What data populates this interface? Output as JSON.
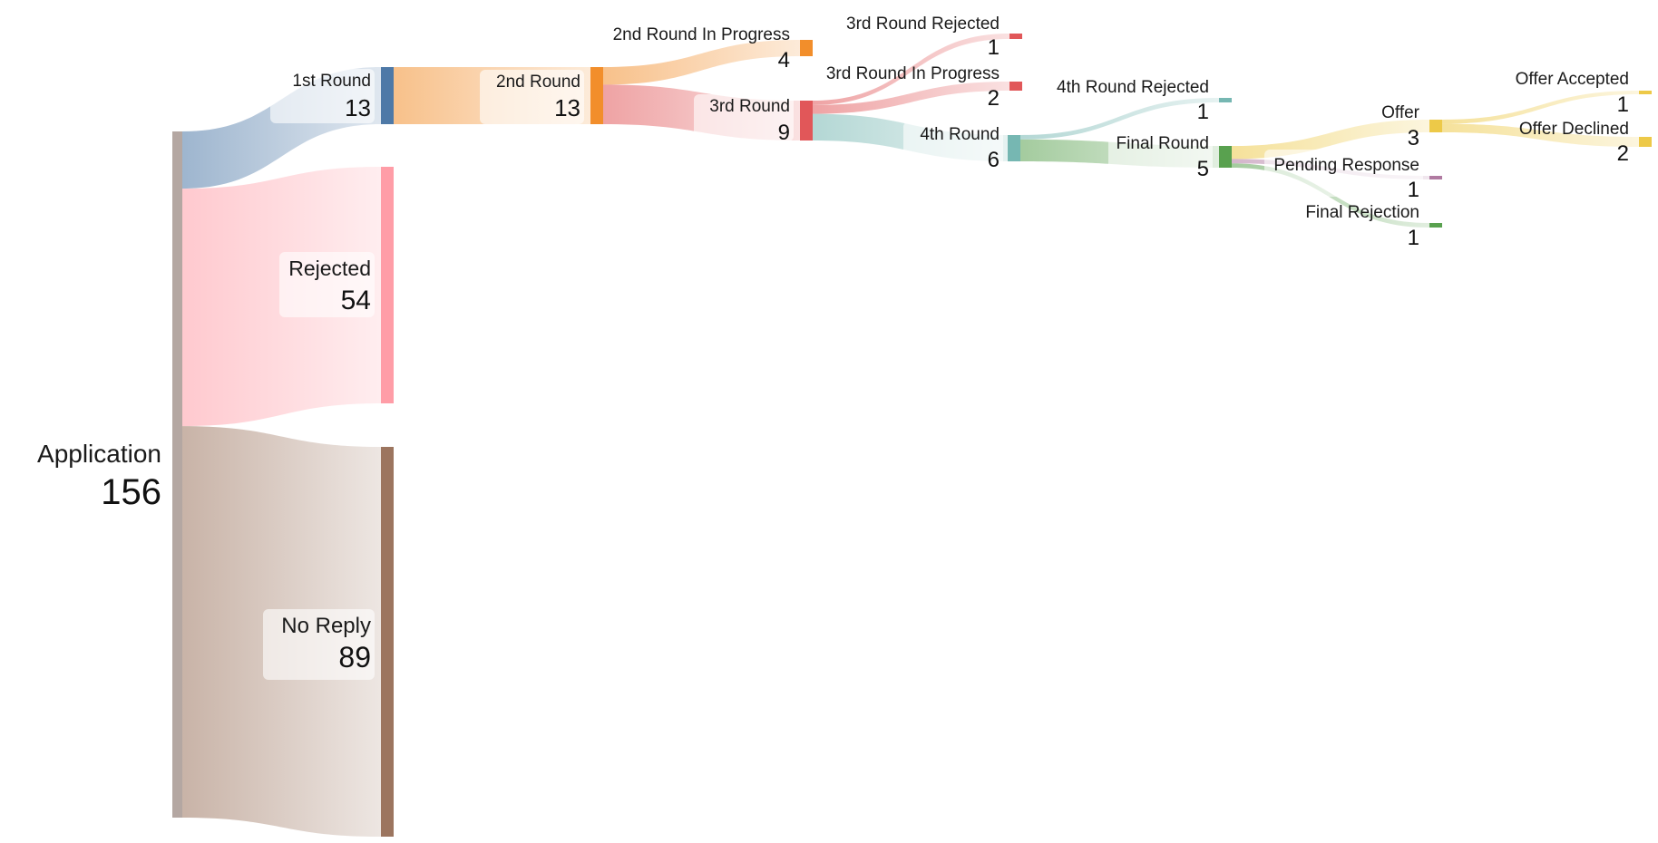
{
  "diagram": {
    "type": "sankey",
    "nodes": [
      {
        "id": "application",
        "label": "Application",
        "value": "156",
        "color": "#b4a7a2"
      },
      {
        "id": "first_round",
        "label": "1st Round",
        "value": "13",
        "color": "#4e79a7"
      },
      {
        "id": "rejected",
        "label": "Rejected",
        "value": "54",
        "color": "#ff9da7"
      },
      {
        "id": "no_reply",
        "label": "No Reply",
        "value": "89",
        "color": "#9c755f"
      },
      {
        "id": "second_round",
        "label": "2nd Round",
        "value": "13",
        "color": "#f28e2b"
      },
      {
        "id": "second_in_progress",
        "label": "2nd Round In Progress",
        "value": "4",
        "color": "#f28e2b"
      },
      {
        "id": "third_round",
        "label": "3rd Round",
        "value": "9",
        "color": "#e15759"
      },
      {
        "id": "third_rejected",
        "label": "3rd Round Rejected",
        "value": "1",
        "color": "#e15759"
      },
      {
        "id": "third_in_progress",
        "label": "3rd Round In Progress",
        "value": "2",
        "color": "#e15759"
      },
      {
        "id": "fourth_round",
        "label": "4th Round",
        "value": "6",
        "color": "#76b7b2"
      },
      {
        "id": "fourth_rejected",
        "label": "4th Round Rejected",
        "value": "1",
        "color": "#76b7b2"
      },
      {
        "id": "final_round",
        "label": "Final Round",
        "value": "5",
        "color": "#59a14f"
      },
      {
        "id": "offer",
        "label": "Offer",
        "value": "3",
        "color": "#edc948"
      },
      {
        "id": "pending_response",
        "label": "Pending Response",
        "value": "1",
        "color": "#b07aa1"
      },
      {
        "id": "final_rejection",
        "label": "Final Rejection",
        "value": "1",
        "color": "#59a14f"
      },
      {
        "id": "offer_accepted",
        "label": "Offer Accepted",
        "value": "1",
        "color": "#edc948"
      },
      {
        "id": "offer_declined",
        "label": "Offer Declined",
        "value": "2",
        "color": "#edc948"
      }
    ],
    "links": [
      {
        "source": "application",
        "target": "first_round",
        "value": 13
      },
      {
        "source": "application",
        "target": "rejected",
        "value": 54
      },
      {
        "source": "application",
        "target": "no_reply",
        "value": 89
      },
      {
        "source": "first_round",
        "target": "second_round",
        "value": 13
      },
      {
        "source": "second_round",
        "target": "second_in_progress",
        "value": 4
      },
      {
        "source": "second_round",
        "target": "third_round",
        "value": 9
      },
      {
        "source": "third_round",
        "target": "third_rejected",
        "value": 1
      },
      {
        "source": "third_round",
        "target": "third_in_progress",
        "value": 2
      },
      {
        "source": "third_round",
        "target": "fourth_round",
        "value": 6
      },
      {
        "source": "fourth_round",
        "target": "fourth_rejected",
        "value": 1
      },
      {
        "source": "fourth_round",
        "target": "final_round",
        "value": 5
      },
      {
        "source": "final_round",
        "target": "offer",
        "value": 3
      },
      {
        "source": "final_round",
        "target": "pending_response",
        "value": 1
      },
      {
        "source": "final_round",
        "target": "final_rejection",
        "value": 1
      },
      {
        "source": "offer",
        "target": "offer_accepted",
        "value": 1
      },
      {
        "source": "offer",
        "target": "offer_declined",
        "value": 2
      }
    ]
  }
}
